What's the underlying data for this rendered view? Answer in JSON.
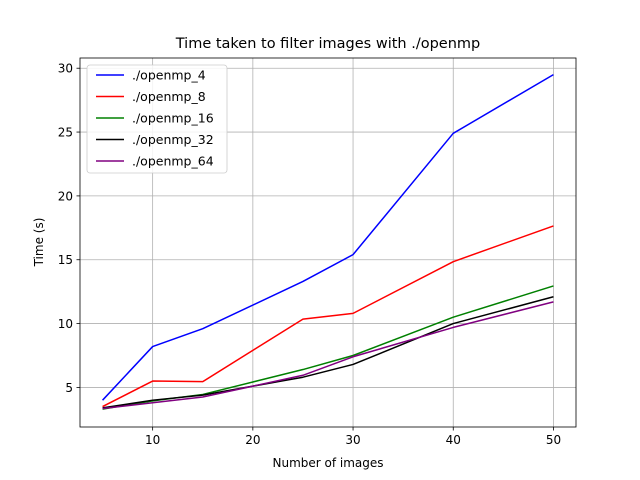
{
  "chart_data": {
    "type": "line",
    "title": "Time taken to filter images with ./openmp",
    "xlabel": "Number of images",
    "ylabel": "Time (s)",
    "x": [
      5,
      10,
      15,
      25,
      30,
      40,
      50
    ],
    "xlim": [
      2.75,
      52.25
    ],
    "ylim": [
      1.9,
      30.8
    ],
    "xticks": [
      10,
      20,
      30,
      40,
      50
    ],
    "yticks": [
      5,
      10,
      15,
      20,
      25,
      30
    ],
    "grid": true,
    "legend_position": "top-left",
    "series": [
      {
        "name": "./openmp_4",
        "color": "#0000ff",
        "values": [
          4.0,
          8.2,
          9.6,
          13.3,
          15.4,
          24.9,
          29.5
        ]
      },
      {
        "name": "./openmp_8",
        "color": "#ff0000",
        "values": [
          3.5,
          5.5,
          5.45,
          10.35,
          10.8,
          14.85,
          17.65
        ]
      },
      {
        "name": "./openmp_16",
        "color": "#008000",
        "values": [
          3.3,
          3.95,
          4.45,
          6.4,
          7.5,
          10.5,
          12.95
        ]
      },
      {
        "name": "./openmp_32",
        "color": "#000000",
        "values": [
          3.4,
          4.0,
          4.4,
          5.8,
          6.8,
          10.0,
          12.1
        ]
      },
      {
        "name": "./openmp_64",
        "color": "#800080",
        "values": [
          3.35,
          3.8,
          4.25,
          5.95,
          7.4,
          9.7,
          11.7
        ]
      }
    ]
  }
}
